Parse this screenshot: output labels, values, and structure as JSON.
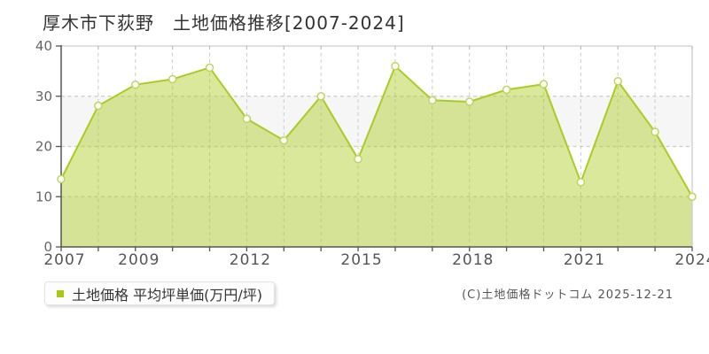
{
  "title": "厚木市下荻野　土地価格推移[2007-2024]",
  "legend": {
    "label": "土地価格 平均坪単価(万円/坪)",
    "bullet_color": "#a8c816"
  },
  "footer": {
    "copyright": "(C)土地価格ドットコム 2025-12-21"
  },
  "chart_data": {
    "type": "area",
    "title": "厚木市下荻野 土地価格推移[2007-2024]",
    "ylabel": "平均坪単価(万円/坪)",
    "x": [
      2007,
      2008,
      2009,
      2010,
      2011,
      2012,
      2013,
      2014,
      2015,
      2016,
      2017,
      2018,
      2019,
      2020,
      2021,
      2022,
      2023,
      2024
    ],
    "series": [
      {
        "name": "土地価格",
        "values": [
          13.5,
          28.1,
          32.3,
          33.4,
          35.7,
          25.5,
          21.2,
          30,
          17.5,
          36,
          29.2,
          28.9,
          31.3,
          32.4,
          12.9,
          33,
          22.9,
          10
        ]
      }
    ],
    "ylim": [
      0,
      40
    ],
    "yticks": [
      0,
      10,
      20,
      30,
      40
    ],
    "ytick_labels": [
      "0",
      "10",
      "20",
      "30",
      "40"
    ],
    "xtick_labels": [
      "2007",
      "2009",
      "2012",
      "2015",
      "2018",
      "2021",
      "2024"
    ],
    "grid": "dashed",
    "legend_position": "bottom-left",
    "colors": {
      "line": "#aacc22",
      "area_fill": "rgba(170,204,34,0.45)",
      "marker_fill": "#ffffff",
      "marker_stroke": "#bdd65c",
      "gridline": "#cccccc",
      "band_fill": "#f6f6f6",
      "axis_dark": "#545454",
      "border_light": "#cccccc",
      "tick_light": "#b9b9b9",
      "ytick_text": "#666666",
      "xtick_text": "#555555"
    }
  }
}
